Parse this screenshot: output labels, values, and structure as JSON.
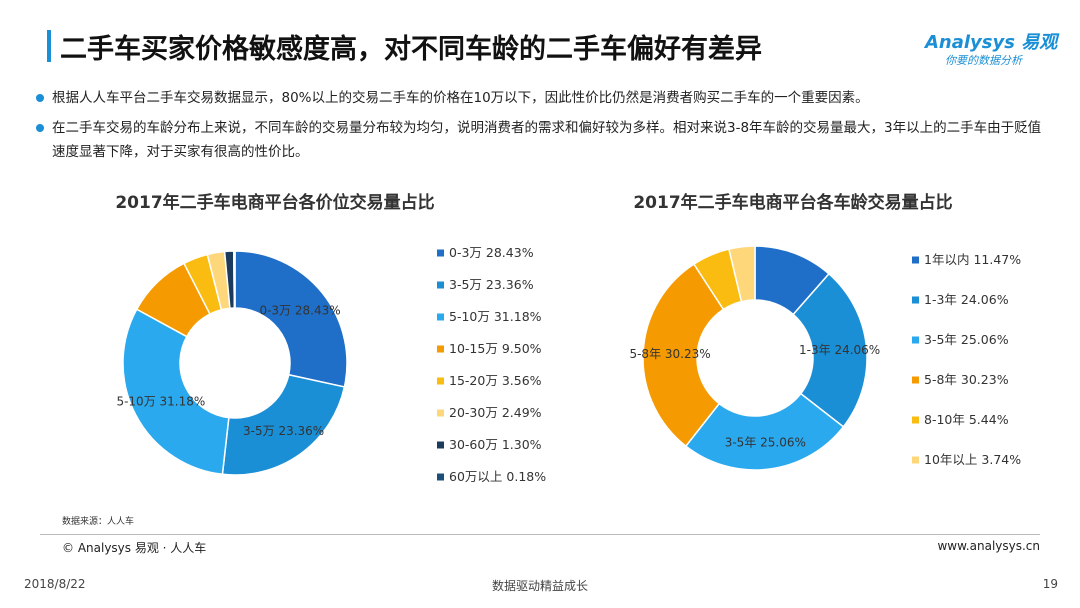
{
  "header": {
    "title": "二手车买家价格敏感度高，对不同车龄的二手车偏好有差异",
    "logo": "Analysys 易观",
    "slogan": "你要的数据分析"
  },
  "bullets": [
    "根据人人车平台二手车交易数据显示，80%以上的交易二手车的价格在10万以下，因此性价比仍然是消费者购买二手车的一个重要因素。",
    "在二手车交易的车龄分布上来说，不同车龄的交易量分布较为均匀，说明消费者的需求和偏好较为多样。相对来说3-8年车龄的交易量最大，3年以上的二手车由于贬值速度显著下降，对于买家有很高的性价比。"
  ],
  "chart_data": [
    {
      "type": "pie",
      "donut": true,
      "title": "2017年二手车电商平台各价位交易量占比",
      "categories": [
        "0-3万",
        "3-5万",
        "5-10万",
        "10-15万",
        "15-20万",
        "20-30万",
        "30-60万",
        "60万以上"
      ],
      "values": [
        28.43,
        23.36,
        31.18,
        9.5,
        3.56,
        2.49,
        1.3,
        0.18
      ],
      "value_labels": [
        "28.43%",
        "23.36%",
        "31.18%",
        "9.50%",
        "3.56%",
        "2.49%",
        "1.30%",
        "0.18%"
      ],
      "colors": [
        "#1f6fc9",
        "#1a8fd6",
        "#2aa9ee",
        "#f59a00",
        "#fbbc12",
        "#fdd77a",
        "#1b3a5c",
        "#1b4f7a"
      ]
    },
    {
      "type": "pie",
      "donut": true,
      "title": "2017年二手车电商平台各车龄交易量占比",
      "categories": [
        "1年以内",
        "1-3年",
        "3-5年",
        "5-8年",
        "8-10年",
        "10年以上"
      ],
      "values": [
        11.47,
        24.06,
        25.06,
        30.23,
        5.44,
        3.74
      ],
      "value_labels": [
        "11.47%",
        "24.06%",
        "25.06%",
        "30.23%",
        "5.44%",
        "3.74%"
      ],
      "colors": [
        "#1f6fc9",
        "#1a8fd6",
        "#2aa9ee",
        "#f59a00",
        "#fbbc12",
        "#fdd77a"
      ]
    }
  ],
  "source": "数据来源：人人车",
  "footer": {
    "copyright": "© Analysys 易观 · 人人车",
    "website": "www.analysys.cn",
    "date": "2018/8/22",
    "slogan": "数据驱动精益成长",
    "page": 19
  }
}
